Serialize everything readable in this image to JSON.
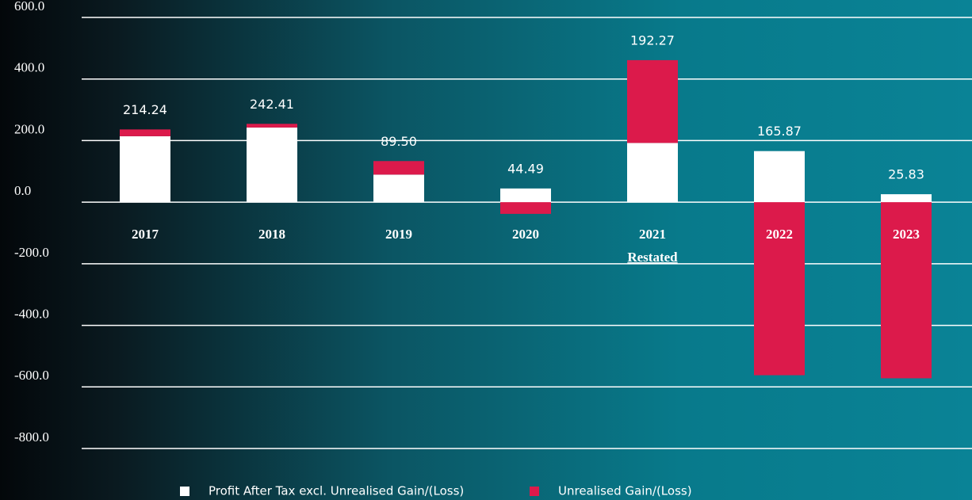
{
  "chart_data": {
    "type": "stacked_bar",
    "categories": [
      "2017",
      "2018",
      "2019",
      "2020",
      "2021",
      "2022",
      "2023"
    ],
    "annotations": [
      {
        "category": "2021",
        "text": "Restated"
      }
    ],
    "series": [
      {
        "name": "Profit After Tax excl. Unrealised Gain/(Loss)",
        "color": "#ffffff",
        "values": [
          214.24,
          242.41,
          89.5,
          44.49,
          192.27,
          165.87,
          25.83
        ],
        "value_labels": [
          "214.24",
          "242.41",
          "89.50",
          "44.49",
          "192.27",
          "165.87",
          "25.83"
        ]
      },
      {
        "name": "Unrealised Gain/(Loss)",
        "color": "#dc1a4b",
        "values": [
          22,
          12,
          44,
          -38,
          269,
          -562,
          -572
        ]
      }
    ],
    "ylim": [
      -800,
      600
    ],
    "yticks": [
      {
        "value": 600,
        "label": "600.0"
      },
      {
        "value": 400,
        "label": "400.0"
      },
      {
        "value": 200,
        "label": "200.0"
      },
      {
        "value": 0,
        "label": "0.0"
      },
      {
        "value": -200,
        "label": "-200.0"
      },
      {
        "value": -400,
        "label": "-400.0"
      },
      {
        "value": -600,
        "label": "-600.0"
      },
      {
        "value": -800,
        "label": "-800.0"
      }
    ],
    "grid": true,
    "legend": "bottom"
  }
}
